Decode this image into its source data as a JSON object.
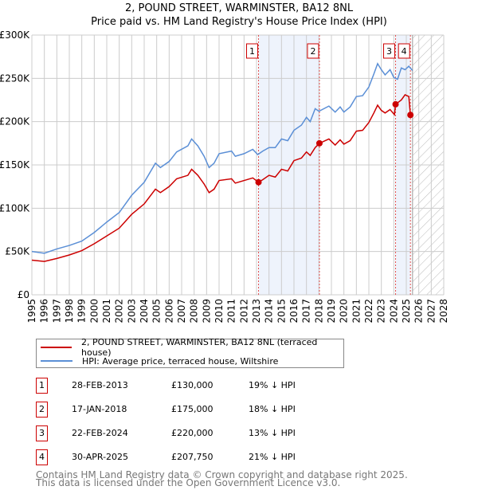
{
  "chart_data": {
    "type": "line",
    "title": "2, POUND STREET, WARMINSTER, BA12 8NL",
    "subtitle": "Price paid vs. HM Land Registry's House Price Index (HPI)",
    "xlim": [
      1995,
      2028
    ],
    "ylim": [
      0,
      300000
    ],
    "yticks": [
      {
        "v": 0,
        "l": "£0"
      },
      {
        "v": 50000,
        "l": "£50K"
      },
      {
        "v": 100000,
        "l": "£100K"
      },
      {
        "v": 150000,
        "l": "£150K"
      },
      {
        "v": 200000,
        "l": "£200K"
      },
      {
        "v": 250000,
        "l": "£250K"
      },
      {
        "v": 300000,
        "l": "£300K"
      }
    ],
    "xticks": [
      "1995",
      "1996",
      "1997",
      "1998",
      "1999",
      "2000",
      "2001",
      "2002",
      "2003",
      "2004",
      "2005",
      "2006",
      "2007",
      "2008",
      "2009",
      "2010",
      "2011",
      "2012",
      "2013",
      "2014",
      "2015",
      "2016",
      "2017",
      "2018",
      "2019",
      "2020",
      "2021",
      "2022",
      "2023",
      "2024",
      "2025",
      "2026",
      "2027",
      "2028"
    ],
    "legend": [
      "2, POUND STREET, WARMINSTER, BA12 8NL (terraced house)",
      "HPI: Average price, terraced house, Wiltshire"
    ],
    "forecast_start": 2025.5,
    "series": [
      {
        "name": "HPI",
        "color": "#5b8fd6",
        "x": [
          1995,
          1996,
          1997,
          1998,
          1999,
          2000,
          2001,
          2002,
          2003,
          2004,
          2004.9,
          2005.3,
          2006,
          2006.6,
          2007.5,
          2007.8,
          2008.3,
          2008.8,
          2009.2,
          2009.6,
          2010,
          2011,
          2011.3,
          2012,
          2012.7,
          2013.1,
          2013.5,
          2014,
          2014.5,
          2015,
          2015.5,
          2016,
          2016.6,
          2017,
          2017.3,
          2017.7,
          2018,
          2018.8,
          2019.3,
          2019.7,
          2020,
          2020.5,
          2021,
          2021.5,
          2022,
          2022.4,
          2022.7,
          2023,
          2023.3,
          2023.7,
          2024,
          2024.3,
          2024.6,
          2024.9,
          2025.2,
          2025.5
        ],
        "values": [
          50000,
          48000,
          53000,
          57000,
          62000,
          72000,
          84000,
          95000,
          115000,
          130000,
          152000,
          147000,
          154000,
          165000,
          172000,
          180000,
          172000,
          160000,
          147000,
          152000,
          163000,
          166000,
          160000,
          163000,
          168000,
          162000,
          166000,
          170000,
          170000,
          180000,
          178000,
          190000,
          196000,
          205000,
          200000,
          215000,
          212000,
          218000,
          211000,
          217000,
          211000,
          217000,
          229000,
          230000,
          240000,
          255000,
          267000,
          260000,
          254000,
          260000,
          251000,
          249000,
          262000,
          260000,
          264000,
          259000
        ]
      },
      {
        "name": "Price paid",
        "color": "#cc0000",
        "x": [
          1995,
          1996,
          1997,
          1998,
          1999,
          2000,
          2001,
          2002,
          2003,
          2004,
          2004.9,
          2005.3,
          2006,
          2006.6,
          2007.5,
          2007.8,
          2008.3,
          2008.8,
          2009.2,
          2009.6,
          2010,
          2011,
          2011.3,
          2012,
          2012.7,
          2013.16,
          2013.5,
          2014,
          2014.5,
          2015,
          2015.5,
          2016,
          2016.6,
          2017,
          2017.3,
          2017.7,
          2018.04,
          2018.8,
          2019.3,
          2019.7,
          2020,
          2020.5,
          2021,
          2021.5,
          2022,
          2022.4,
          2022.7,
          2023,
          2023.3,
          2023.7,
          2024.05,
          2024.14,
          2024.6,
          2024.9,
          2025.2,
          2025.33
        ],
        "values": [
          40000,
          38500,
          42000,
          46000,
          51000,
          59000,
          68000,
          77000,
          93000,
          105000,
          122000,
          118000,
          125000,
          134000,
          138000,
          145000,
          138000,
          128000,
          118000,
          122000,
          132000,
          134000,
          129000,
          132000,
          135000,
          130000,
          133000,
          138000,
          136000,
          145000,
          143000,
          155000,
          158000,
          165000,
          161000,
          170000,
          175000,
          180000,
          173000,
          179000,
          174000,
          178000,
          189000,
          190000,
          199000,
          210000,
          219000,
          213000,
          210000,
          214000,
          208000,
          220000,
          225000,
          231000,
          229000,
          207750
        ]
      }
    ],
    "sales": [
      {
        "n": "1",
        "x": 2013.16,
        "date": "28-FEB-2013",
        "price": 130000,
        "price_label": "£130,000",
        "hpi": "19% ↓ HPI"
      },
      {
        "n": "2",
        "x": 2018.04,
        "date": "17-JAN-2018",
        "price": 175000,
        "price_label": "£175,000",
        "hpi": "18% ↓ HPI"
      },
      {
        "n": "3",
        "x": 2024.14,
        "date": "22-FEB-2024",
        "price": 220000,
        "price_label": "£220,000",
        "hpi": "13% ↓ HPI"
      },
      {
        "n": "4",
        "x": 2025.33,
        "date": "30-APR-2025",
        "price": 207750,
        "price_label": "£207,750",
        "hpi": "21% ↓ HPI"
      }
    ]
  },
  "footer": [
    "Contains HM Land Registry data © Crown copyright and database right 2025.",
    "This data is licensed under the Open Government Licence v3.0."
  ]
}
